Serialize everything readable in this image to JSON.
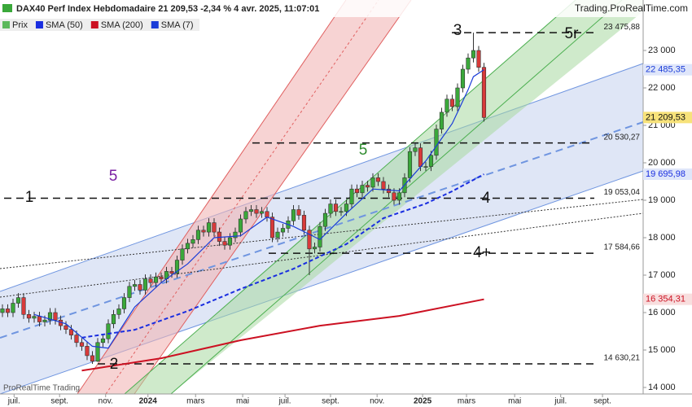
{
  "chart_data": {
    "type": "candlestick",
    "title": "DAX40 Perf Index Hebdomadaire 21 209,53 -2,34 % 4 avr. 2025, 11:07:01",
    "source": "Trading.ProRealTime.com",
    "watermark": "ProRealTime Trading",
    "xlim": [
      -0.46,
      121.08
    ],
    "xticks": [
      {
        "value": 2.2,
        "label": "juil."
      },
      {
        "value": 10.8,
        "label": "sept."
      },
      {
        "value": 19.5,
        "label": "nov."
      },
      {
        "value": 27.5,
        "label": "2024"
      },
      {
        "value": 36.5,
        "label": "mars"
      },
      {
        "value": 45.4,
        "label": "mai"
      },
      {
        "value": 53.4,
        "label": "juil."
      },
      {
        "value": 62,
        "label": "sept."
      },
      {
        "value": 70.8,
        "label": "nov."
      },
      {
        "value": 79.4,
        "label": "2025"
      },
      {
        "value": 87.7,
        "label": "mars"
      },
      {
        "value": 96.8,
        "label": "mai"
      },
      {
        "value": 105.5,
        "label": "juil."
      },
      {
        "value": 113.4,
        "label": "sept."
      }
    ],
    "ylim": [
      13826,
      24348
    ],
    "yticks": [
      {
        "value": 14000,
        "label": "14 000"
      },
      {
        "value": 15000,
        "label": "15 000"
      },
      {
        "value": 16000,
        "label": "16 000"
      },
      {
        "value": 17000,
        "label": "17 000"
      },
      {
        "value": 18000,
        "label": "18 000"
      },
      {
        "value": 19000,
        "label": "19 000"
      },
      {
        "value": 20000,
        "label": "20 000"
      },
      {
        "value": 21000,
        "label": "21 000"
      },
      {
        "value": 22000,
        "label": "22 000"
      },
      {
        "value": 23000,
        "label": "23 000"
      }
    ],
    "candles": {
      "name": "Prix",
      "color": "#5cb85c",
      "color_up": "#3aa83a",
      "color_down": "#d83a3a",
      "last_label": "21 209,53",
      "x": [
        0,
        1,
        2,
        3,
        4,
        5,
        6,
        7,
        8,
        9,
        10,
        11,
        12,
        13,
        14,
        15,
        16,
        17,
        18,
        19,
        20,
        21,
        22,
        23,
        24,
        25,
        26,
        27,
        28,
        29,
        30,
        31,
        32,
        33,
        34,
        35,
        36,
        37,
        38,
        39,
        40,
        41,
        42,
        43,
        44,
        45,
        46,
        47,
        48,
        49,
        50,
        51,
        52,
        53,
        54,
        55,
        56,
        57,
        58,
        59,
        60,
        61,
        62,
        63,
        64,
        65,
        66,
        67,
        68,
        69,
        70,
        71,
        72,
        73,
        74,
        75,
        76,
        77,
        78,
        79,
        80,
        81,
        82,
        83,
        84,
        85,
        86,
        87,
        88,
        89,
        90,
        91
      ],
      "open": [
        16000,
        16100,
        16000,
        16250,
        16400,
        15950,
        15850,
        15900,
        15750,
        15800,
        16000,
        15800,
        15650,
        15550,
        15400,
        15200,
        15100,
        14850,
        14700,
        15200,
        15300,
        15700,
        15950,
        16100,
        16400,
        16700,
        16750,
        16600,
        16900,
        16800,
        16950,
        16900,
        17100,
        17050,
        17400,
        17700,
        17850,
        17950,
        18200,
        18150,
        18400,
        18150,
        17900,
        17800,
        18000,
        18150,
        18500,
        18700,
        18750,
        18650,
        18700,
        18550,
        18000,
        18150,
        18250,
        18450,
        18750,
        18600,
        18200,
        17700,
        17750,
        18300,
        18650,
        18900,
        18700,
        18700,
        18900,
        19300,
        19200,
        19400,
        19350,
        19600,
        19500,
        19300,
        19200,
        19000,
        19200,
        19600,
        20300,
        20400,
        19900,
        19900,
        20200,
        20900,
        21350,
        21700,
        21500,
        22000,
        22500,
        22800,
        23000,
        22550
      ],
      "high": [
        16220,
        16220,
        16370,
        16520,
        16520,
        16070,
        16020,
        16020,
        15920,
        16120,
        16120,
        15920,
        15770,
        15670,
        15520,
        15320,
        15220,
        14970,
        15320,
        15420,
        15820,
        16070,
        16220,
        16520,
        16820,
        16870,
        16870,
        17020,
        17020,
        17070,
        17070,
        17220,
        17220,
        17520,
        17820,
        17970,
        18070,
        18320,
        18320,
        18520,
        18520,
        18270,
        18020,
        18120,
        18270,
        18620,
        18820,
        18870,
        18870,
        18820,
        18820,
        18670,
        18270,
        18370,
        18570,
        18870,
        18870,
        18720,
        18320,
        17870,
        18420,
        18770,
        19020,
        19020,
        18820,
        19020,
        19420,
        19420,
        19520,
        19520,
        19720,
        19720,
        19620,
        19420,
        19320,
        19320,
        19720,
        20420,
        20520,
        20520,
        20020,
        20320,
        21020,
        21470,
        21820,
        21820,
        22120,
        22620,
        22920,
        23475.88,
        23120,
        22670
      ],
      "low": [
        15880,
        15880,
        15880,
        16130,
        15830,
        15730,
        15730,
        15630,
        15630,
        15680,
        15680,
        15530,
        15430,
        15280,
        15080,
        14980,
        14730,
        14630.21,
        14680,
        15080,
        15180,
        15580,
        15830,
        15980,
        16280,
        16580,
        16480,
        16480,
        16680,
        16680,
        16780,
        16780,
        16930,
        16930,
        17280,
        17580,
        17730,
        17830,
        18030,
        18030,
        18030,
        17780,
        17680,
        17680,
        17880,
        18030,
        18380,
        18580,
        18530,
        18530,
        18430,
        17880,
        17880,
        18030,
        18130,
        18330,
        18480,
        18080,
        17000,
        17580,
        17630,
        18180,
        18530,
        18580,
        18580,
        18580,
        18780,
        19080,
        19080,
        19230,
        19230,
        19380,
        19180,
        19080,
        18880,
        18880,
        19080,
        19480,
        20180,
        19780,
        19780,
        19780,
        20080,
        20780,
        21230,
        21380,
        21380,
        21880,
        22380,
        22680,
        22430,
        21100
      ],
      "close": [
        16100,
        16000,
        16250,
        16400,
        15950,
        15850,
        15900,
        15750,
        15800,
        16000,
        15800,
        15650,
        15550,
        15400,
        15200,
        15100,
        14850,
        14700,
        15200,
        15300,
        15700,
        15950,
        16100,
        16400,
        16700,
        16750,
        16600,
        16900,
        16800,
        16950,
        16900,
        17100,
        17050,
        17400,
        17700,
        17850,
        17950,
        18200,
        18150,
        18400,
        18150,
        17900,
        17800,
        18000,
        18150,
        18500,
        18700,
        18750,
        18650,
        18700,
        18550,
        18000,
        18150,
        18250,
        18450,
        18750,
        18600,
        18200,
        17700,
        17750,
        18300,
        18650,
        18900,
        18700,
        18700,
        18900,
        19300,
        19200,
        19400,
        19350,
        19600,
        19500,
        19300,
        19200,
        19000,
        19200,
        19600,
        20300,
        20400,
        19900,
        19900,
        20200,
        20900,
        21350,
        21700,
        21500,
        22000,
        22500,
        22800,
        23000,
        22550,
        21209.53
      ]
    },
    "series": [
      {
        "name": "SMA (50)",
        "color": "#1a2ee0",
        "dashed": true,
        "last_label": "19 695,98",
        "x": [
          15,
          25,
          35,
          45,
          55,
          65,
          72,
          80,
          85,
          91
        ],
        "values": [
          15330,
          15540,
          16040,
          16630,
          17170,
          17830,
          18520,
          18910,
          19240,
          19695.98
        ]
      },
      {
        "name": "SMA (200)",
        "color": "#cc1122",
        "dashed": false,
        "last_label": "16 354,31",
        "x": [
          15,
          30,
          45,
          60,
          75,
          91
        ],
        "values": [
          14450,
          14780,
          15260,
          15650,
          15910,
          16354.31
        ]
      },
      {
        "name": "SMA (7)",
        "color": "#1a3cd8",
        "dashed": false,
        "last_label": "22 485,35",
        "x": [
          6,
          12,
          17,
          20,
          25,
          30,
          35,
          40,
          45,
          50,
          55,
          60,
          65,
          70,
          75,
          80,
          85,
          88,
          89,
          91
        ],
        "values": [
          15950,
          15700,
          15100,
          15050,
          16150,
          16800,
          17300,
          18000,
          18050,
          18550,
          18300,
          17950,
          18650,
          19300,
          19250,
          20050,
          21050,
          21950,
          22300,
          22485.35
        ]
      }
    ],
    "levels": [
      {
        "value": 23475.88,
        "label": "23 475,88"
      },
      {
        "value": 20530.27,
        "label": "20 530,27"
      },
      {
        "value": 19053.04,
        "label": "19 053,04"
      },
      {
        "value": 17584.66,
        "label": "17 584,66"
      },
      {
        "value": 14630.21,
        "label": "14 630,21"
      }
    ],
    "annotations": [
      {
        "text": "1",
        "color": "#111111"
      },
      {
        "text": "5",
        "color": "#7a1fa2"
      },
      {
        "text": "2",
        "color": "#111111"
      },
      {
        "text": "5",
        "color": "#2e8b2e"
      },
      {
        "text": "4",
        "color": "#111111"
      },
      {
        "text": "4+",
        "color": "#111111"
      },
      {
        "text": "3",
        "color": "#111111"
      },
      {
        "text": "5r",
        "color": "#111111"
      }
    ]
  }
}
